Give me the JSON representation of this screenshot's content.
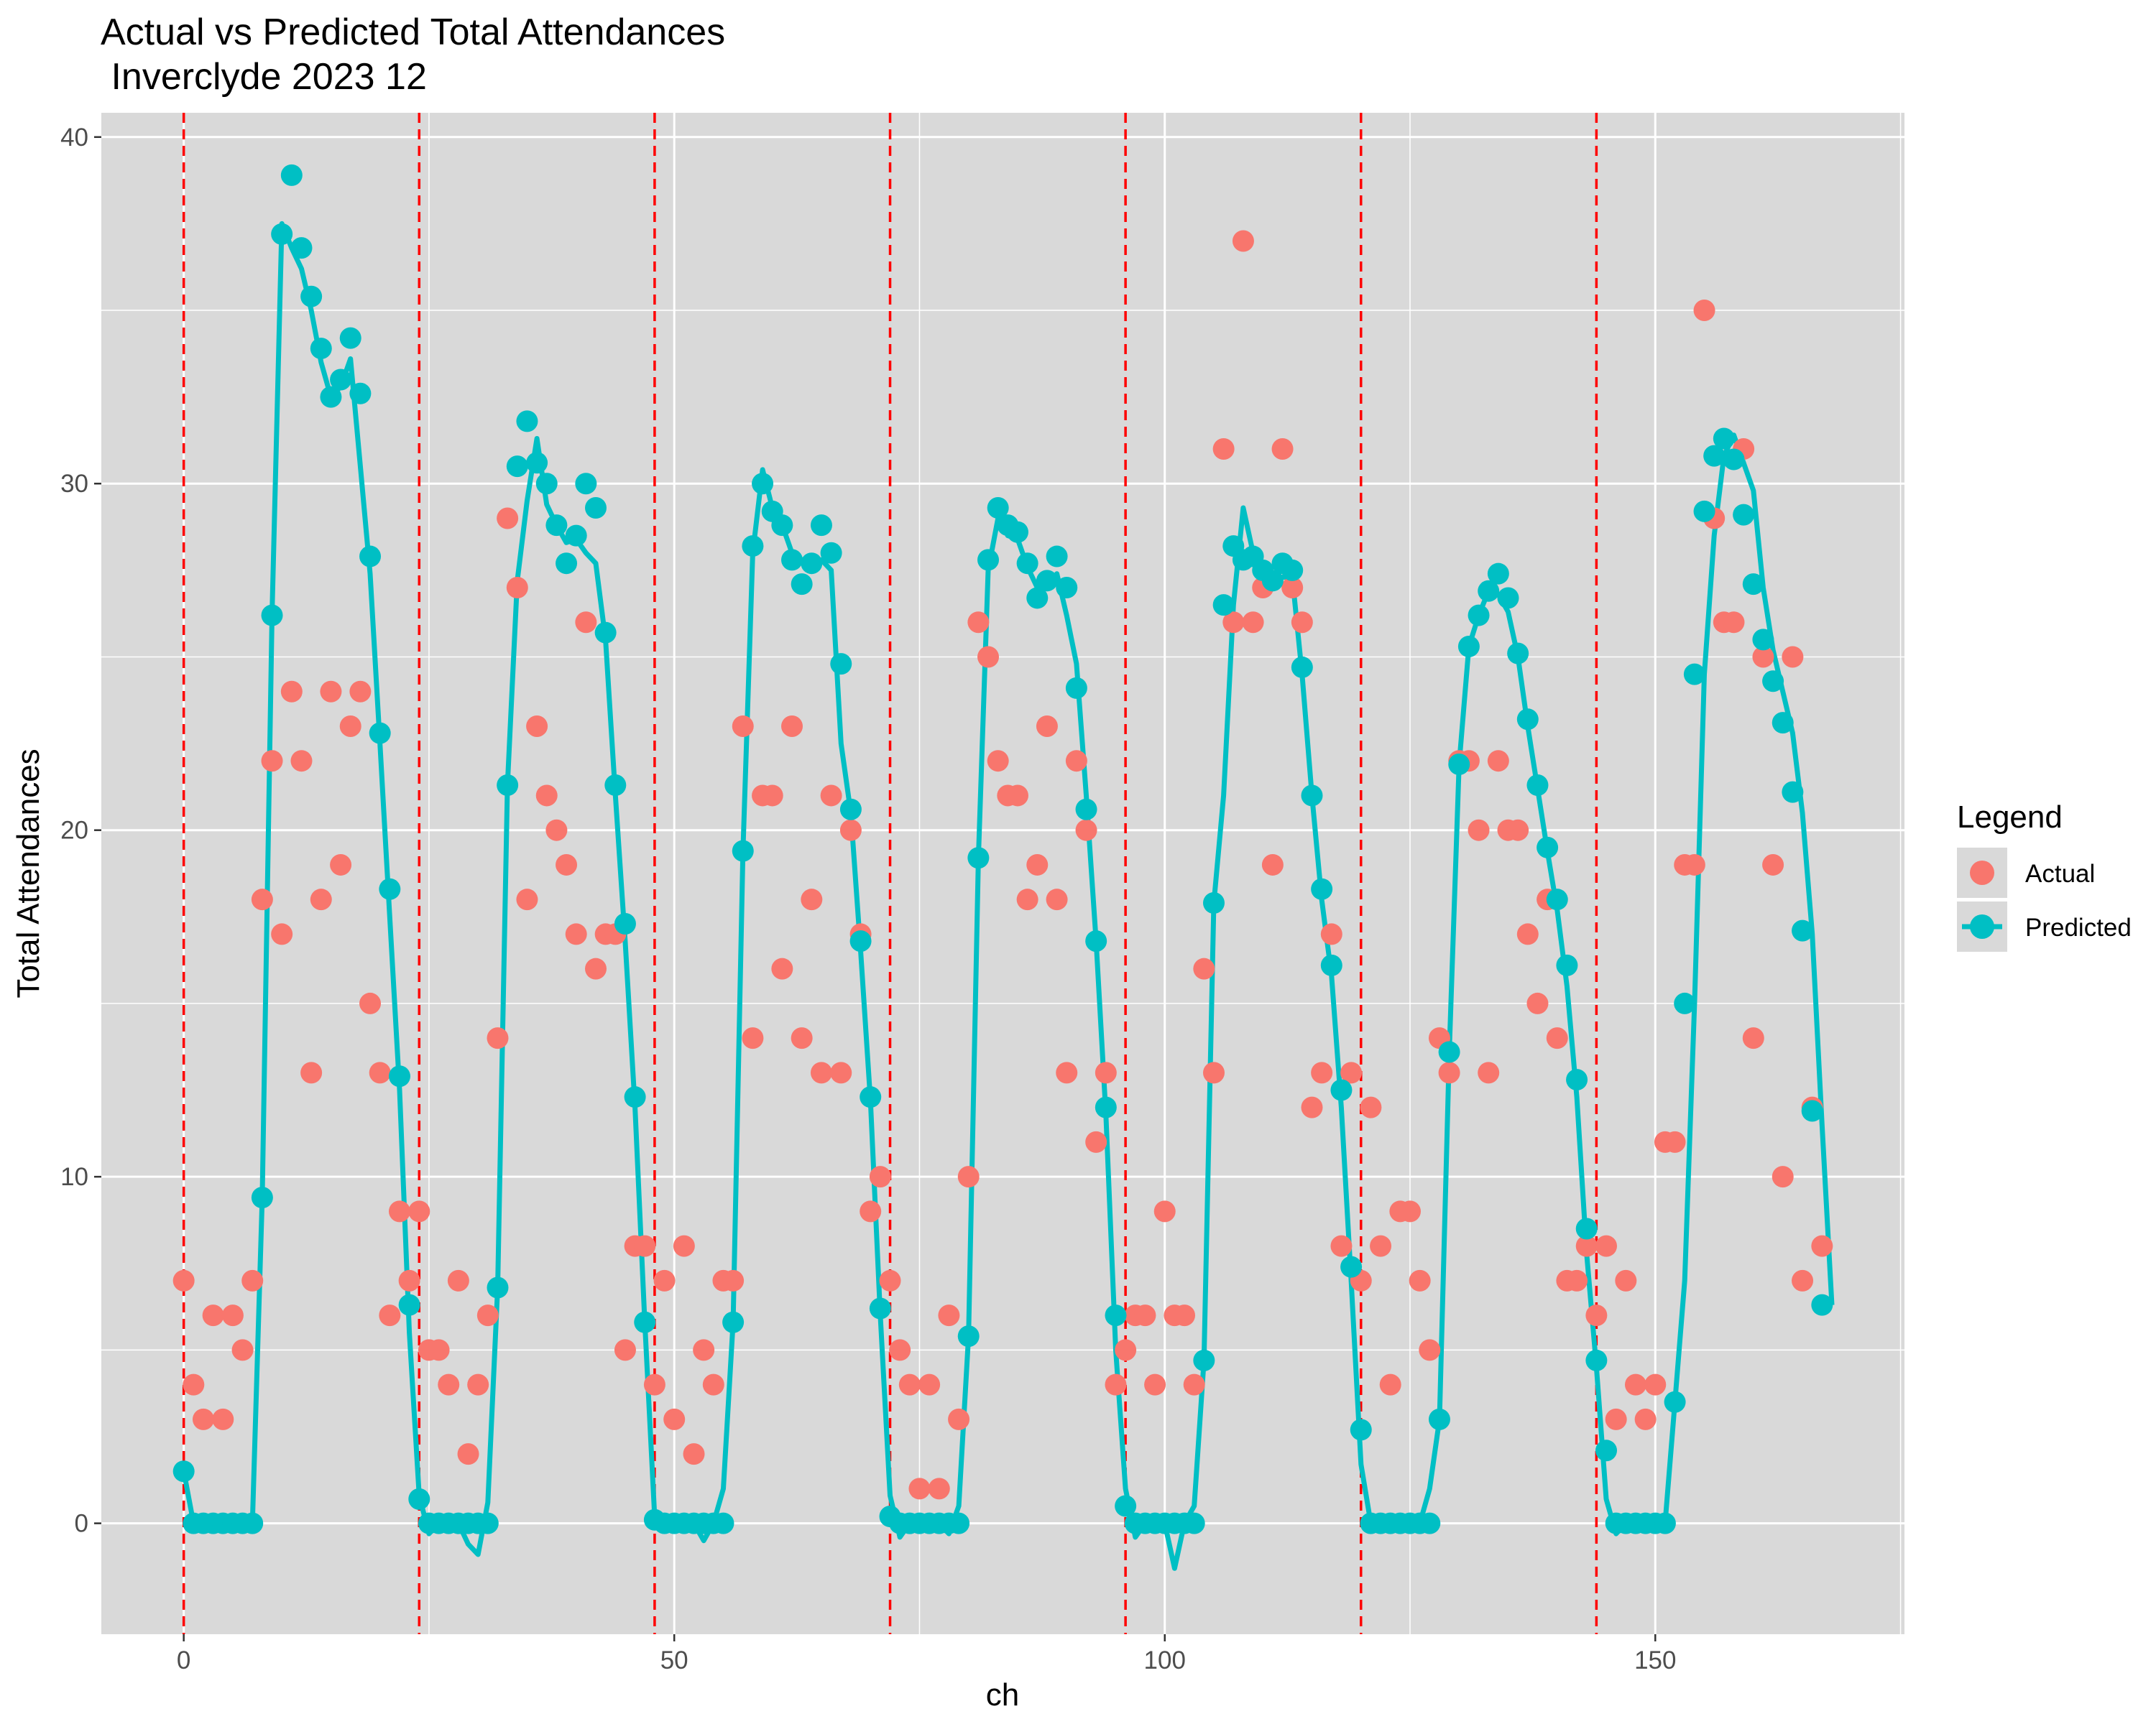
{
  "title_line1": "Actual vs Predicted Total Attendances",
  "title_line2": " Inverclyde 2023 12",
  "chart_data": {
    "type": "scatter",
    "title": "Actual vs Predicted Total Attendances\n Inverclyde 2023 12",
    "xlabel": "ch",
    "ylabel": "Total Attendances",
    "xlim": [
      -8.4,
      175.4
    ],
    "ylim": [
      -3.2,
      40.7
    ],
    "x_ticks": [
      0,
      50,
      100,
      150
    ],
    "y_ticks": [
      0,
      10,
      20,
      30,
      40
    ],
    "grid": true,
    "legend": {
      "title": "Legend",
      "position": "right",
      "entries": [
        "Actual",
        "Predicted"
      ]
    },
    "colors": {
      "actual": "#F8766D",
      "predicted": "#00BFC4",
      "vline": "#FF0000",
      "panel": "#D9D9D9",
      "grid": "#FFFFFF",
      "axis_text": "#4D4D4D"
    },
    "vlines": [
      0,
      24,
      48,
      72,
      96,
      120,
      144
    ],
    "series": [
      {
        "name": "Actual",
        "marker": "point",
        "values": [
          7,
          4,
          3,
          6,
          3,
          6,
          5,
          7,
          18,
          22,
          17,
          24,
          22,
          13,
          18,
          24,
          19,
          23,
          24,
          15,
          13,
          6,
          9,
          7,
          9,
          5,
          5,
          4,
          7,
          2,
          4,
          6,
          14,
          29,
          27,
          18,
          23,
          21,
          20,
          19,
          17,
          26,
          16,
          17,
          17,
          5,
          8,
          8,
          4,
          7,
          3,
          8,
          2,
          5,
          4,
          7,
          7,
          23,
          14,
          21,
          21,
          16,
          23,
          14,
          18,
          13,
          21,
          13,
          20,
          17,
          9,
          10,
          7,
          5,
          4,
          1,
          4,
          1,
          6,
          3,
          10,
          26,
          25,
          22,
          21,
          21,
          18,
          19,
          23,
          18,
          13,
          22,
          20,
          11,
          13,
          4,
          5,
          6,
          6,
          4,
          9,
          6,
          6,
          4,
          16,
          13,
          31,
          26,
          37,
          26,
          27,
          19,
          31,
          27,
          26,
          12,
          13,
          17,
          8,
          13,
          7,
          12,
          8,
          4,
          9,
          9,
          7,
          5,
          14,
          13,
          22,
          22,
          20,
          13,
          22,
          20,
          20,
          17,
          15,
          18,
          14,
          7,
          7,
          8,
          6,
          8,
          3,
          7,
          4,
          3,
          4,
          11,
          11,
          19,
          19,
          35,
          29,
          26,
          26,
          31,
          14,
          25,
          19,
          10,
          25,
          7,
          12,
          8
        ]
      },
      {
        "name": "Predicted",
        "marker": "point+line",
        "values": [
          1.5,
          0,
          0,
          0,
          0,
          0,
          0,
          0,
          9.4,
          26.2,
          37.2,
          38.9,
          36.8,
          35.4,
          33.9,
          32.5,
          33.0,
          34.2,
          32.6,
          27.9,
          22.8,
          18.3,
          12.9,
          6.3,
          0.7,
          0,
          0,
          0,
          0,
          0,
          0,
          0,
          6.8,
          21.3,
          30.5,
          31.8,
          30.6,
          30.0,
          28.8,
          27.7,
          28.5,
          30.0,
          29.3,
          25.7,
          21.3,
          17.3,
          12.3,
          5.8,
          0.1,
          0,
          0,
          0,
          0,
          0,
          0,
          0,
          5.8,
          19.4,
          28.2,
          30.0,
          29.2,
          28.8,
          27.8,
          27.1,
          27.7,
          28.8,
          28.0,
          24.8,
          20.6,
          16.8,
          12.3,
          6.2,
          0.2,
          0,
          0,
          0,
          0,
          0,
          0,
          0,
          5.4,
          19.2,
          27.8,
          29.3,
          28.8,
          28.6,
          27.7,
          26.7,
          27.2,
          27.9,
          27.0,
          24.1,
          20.6,
          16.8,
          12.0,
          6.0,
          0.5,
          0,
          0,
          0,
          0,
          0,
          0,
          0,
          4.7,
          17.9,
          26.5,
          28.2,
          27.8,
          27.9,
          27.5,
          27.2,
          27.7,
          27.5,
          24.7,
          21.0,
          18.3,
          16.1,
          12.5,
          7.4,
          2.7,
          0,
          0,
          0,
          0,
          0,
          0,
          0,
          3.0,
          13.6,
          21.9,
          25.3,
          26.2,
          26.9,
          27.4,
          26.7,
          25.1,
          23.2,
          21.3,
          19.5,
          18.0,
          16.1,
          12.8,
          8.5,
          4.7,
          2.1,
          0,
          0,
          0,
          0,
          0,
          0,
          3.5,
          15.0,
          24.5,
          29.2,
          30.8,
          31.3,
          30.7,
          29.1,
          27.1,
          25.5,
          24.3,
          23.1,
          21.1,
          17.1,
          11.9,
          6.3
        ]
      }
    ],
    "line_values": [
      1.5,
      0,
      0,
      0,
      0,
      0,
      0,
      0,
      9.4,
      26.2,
      37.5,
      36.8,
      36.2,
      35.0,
      33.5,
      32.5,
      32.8,
      33.6,
      30.5,
      27.4,
      22.5,
      17.5,
      12.5,
      5.5,
      0.8,
      -0.3,
      0,
      0,
      0,
      -0.6,
      -0.9,
      0.6,
      6.8,
      21.3,
      27.2,
      29.5,
      31.3,
      29.4,
      28.8,
      28.3,
      28.4,
      28.0,
      27.7,
      25.5,
      21.0,
      16.8,
      12.0,
      5.8,
      0.2,
      0,
      0,
      0,
      0,
      -0.5,
      0,
      1.0,
      5.8,
      19.4,
      28.0,
      30.4,
      29.3,
      28.8,
      28.0,
      27.8,
      27.7,
      27.8,
      27.5,
      22.5,
      20.5,
      16.5,
      12.2,
      6.0,
      0.8,
      -0.4,
      0,
      0,
      0,
      0,
      -0.3,
      0.5,
      5.4,
      19.2,
      27.5,
      29.0,
      28.5,
      28.4,
      27.6,
      27.0,
      27.0,
      27.4,
      26.2,
      24.8,
      21.0,
      16.8,
      11.8,
      5.0,
      1.0,
      -0.4,
      0,
      0,
      0,
      -1.3,
      0,
      0.5,
      4.7,
      17.9,
      21.0,
      26.5,
      29.3,
      28.0,
      27.0,
      27.0,
      27.3,
      27.3,
      24.5,
      21.0,
      18.0,
      15.8,
      12.0,
      7.0,
      1.7,
      0,
      0,
      0,
      0,
      0,
      0,
      1.0,
      3.0,
      13.6,
      21.9,
      25.3,
      26.2,
      26.9,
      26.8,
      26.3,
      25.0,
      23.0,
      21.2,
      19.4,
      17.7,
      15.5,
      12.3,
      7.8,
      4.5,
      0.7,
      -0.3,
      0,
      0,
      0,
      0,
      0,
      3.5,
      7.0,
      15.0,
      24.5,
      28.5,
      30.8,
      31.4,
      30.6,
      29.8,
      27.0,
      25.2,
      24.0,
      22.8,
      20.5,
      17.0,
      11.5,
      6.3
    ]
  }
}
